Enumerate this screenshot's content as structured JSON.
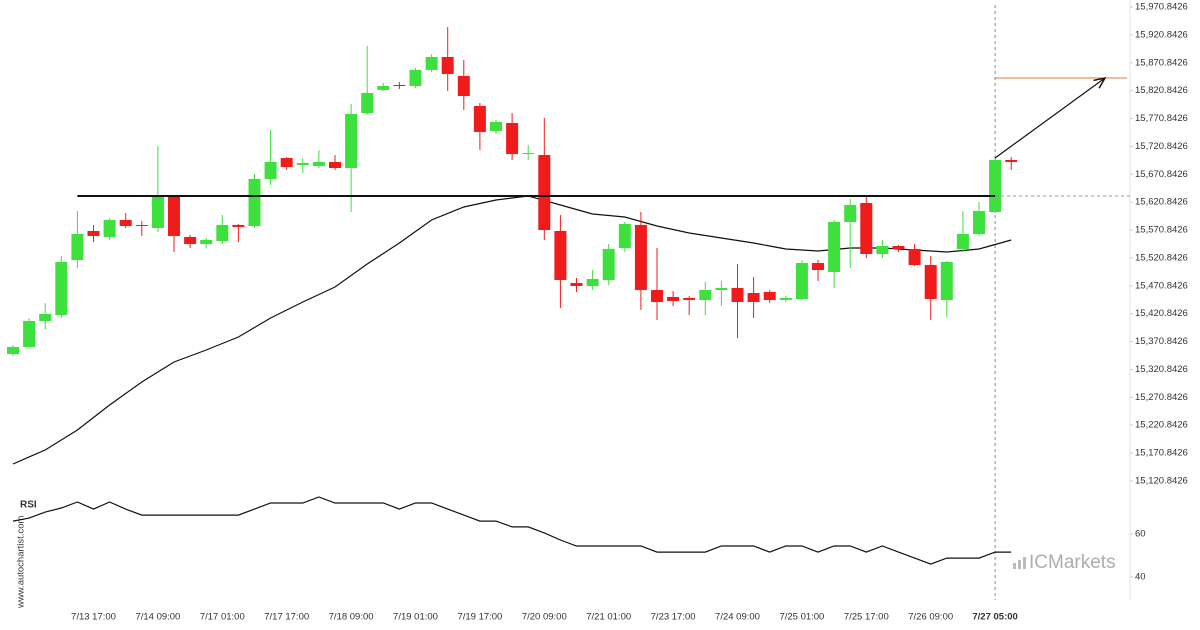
{
  "chart_data": [
    {
      "type": "candlestick",
      "categories": [
        null,
        null,
        null,
        null,
        null,
        "7/13 17:00",
        null,
        null,
        null,
        "7/14 09:00",
        null,
        null,
        null,
        "7/17 01:00",
        null,
        null,
        null,
        "7/17 17:00",
        null,
        null,
        null,
        "7/18 09:00",
        null,
        null,
        null,
        "7/19 01:00",
        null,
        null,
        null,
        "7/19 17:00",
        null,
        null,
        null,
        "7/20 09:00",
        null,
        null,
        null,
        "7/21 01:00",
        null,
        null,
        null,
        "7/23 17:00",
        null,
        null,
        null,
        "7/24 09:00",
        null,
        null,
        null,
        "7/25 01:00",
        null,
        null,
        null,
        "7/25 17:00",
        null,
        null,
        null,
        "7/26 09:00",
        null,
        null,
        null,
        "7/27 05:00",
        null
      ],
      "open": [
        15348.5,
        15361.1,
        15407.7,
        15418.5,
        15517.1,
        15569.1,
        15558.4,
        15588.9,
        15579.9,
        15574.5,
        15631.9,
        15558.4,
        15545.8,
        15551.2,
        15579.9,
        15578.1,
        15662.4,
        15700.0,
        15687.5,
        15685.7,
        15692.9,
        15682.1,
        15780.7,
        15822.0,
        15831.0,
        15829.2,
        15857.9,
        15881.2,
        15847.1,
        15793.3,
        15748.5,
        15762.8,
        15707.2,
        15705.4,
        15569.1,
        15475.9,
        15470.5,
        15481.2,
        15538.6,
        15579.9,
        15463.3,
        15450.8,
        15449.0,
        15445.4,
        15463.3,
        15466.9,
        15457.9,
        15459.7,
        15445.4,
        15447.2,
        15511.7,
        15495.6,
        15585.3,
        15619.3,
        15527.9,
        15542.2,
        15536.8,
        15508.1,
        15445.4,
        15536.8,
        15563.7,
        15603.2,
        15696.5
      ],
      "high": [
        15364.7,
        15413.1,
        15440.0,
        15524.3,
        15605.0,
        15579.9,
        15592.4,
        15601.4,
        15587.1,
        15721.6,
        15631.9,
        15562.0,
        15556.6,
        15597.8,
        15581.7,
        15671.3,
        15750.3,
        15701.8,
        15700.0,
        15714.4,
        15705.4,
        15796.9,
        15900.9,
        15834.5,
        15836.3,
        15861.4,
        15886.6,
        15935.0,
        15875.8,
        15798.7,
        15768.2,
        15780.7,
        15723.4,
        15771.8,
        15597.8,
        15484.8,
        15499.2,
        15545.8,
        15585.3,
        15603.2,
        15538.6,
        15461.5,
        15452.6,
        15477.7,
        15479.5,
        15509.9,
        15486.6,
        15463.3,
        15452.6,
        15517.1,
        15517.1,
        15588.9,
        15626.5,
        15631.9,
        15553.0,
        15544.0,
        15545.8,
        15524.3,
        15515.3,
        15605.0,
        15621.1,
        15701.8,
        15701.8
      ],
      "low": [
        15345.0,
        15357.5,
        15391.6,
        15413.1,
        15502.8,
        15549.4,
        15553.0,
        15574.5,
        15560.2,
        15567.3,
        15531.5,
        15538.6,
        15538.6,
        15545.8,
        15549.4,
        15574.5,
        15651.6,
        15678.5,
        15673.1,
        15682.1,
        15678.5,
        15603.2,
        15777.2,
        15820.2,
        15823.8,
        15825.6,
        15854.3,
        15820.2,
        15786.1,
        15714.4,
        15743.1,
        15696.5,
        15696.5,
        15553.0,
        15431.0,
        15459.7,
        15463.3,
        15472.3,
        15531.5,
        15427.4,
        15409.5,
        15434.6,
        15418.5,
        15418.5,
        15434.6,
        15377.2,
        15413.1,
        15440.0,
        15441.8,
        15445.4,
        15479.5,
        15466.9,
        15502.8,
        15520.7,
        15520.7,
        15531.5,
        15506.4,
        15409.5,
        15414.9,
        15531.5,
        15560.2,
        15601.4,
        15678.5
      ],
      "close": [
        15361.1,
        15407.7,
        15420.3,
        15513.5,
        15563.7,
        15560.2,
        15588.9,
        15578.1,
        15578.1,
        15631.9,
        15560.2,
        15545.8,
        15553.0,
        15579.9,
        15576.3,
        15662.4,
        15692.9,
        15683.9,
        15691.1,
        15692.9,
        15682.1,
        15779.0,
        15816.6,
        15829.2,
        15829.2,
        15857.9,
        15881.2,
        15850.7,
        15811.2,
        15746.7,
        15764.6,
        15707.2,
        15709.0,
        15570.9,
        15481.2,
        15470.5,
        15483.0,
        15536.8,
        15581.7,
        15463.3,
        15441.8,
        15443.6,
        15445.4,
        15463.3,
        15466.9,
        15441.8,
        15441.8,
        15445.4,
        15449.0,
        15511.7,
        15499.2,
        15585.3,
        15615.8,
        15527.9,
        15542.2,
        15536.8,
        15508.1,
        15447.2,
        15513.5,
        15563.7,
        15605.0,
        15696.5,
        15692.9
      ],
      "moving_average": [
        15151.3,
        15163.9,
        15176.4,
        15194.3,
        15212.2,
        15234.7,
        15257.1,
        15277.7,
        15298.3,
        15316.3,
        15334.2,
        15345.0,
        15355.7,
        15367.4,
        15379.0,
        15396.1,
        15413.1,
        15427.5,
        15441.8,
        15455.3,
        15468.7,
        15489.3,
        15509.9,
        15528.8,
        15547.6,
        15568.3,
        15588.9,
        15600.6,
        15612.2,
        15618.5,
        15624.7,
        15628.3,
        15631.9,
        15623.9,
        15615.8,
        15607.7,
        15599.6,
        15596.9,
        15594.2,
        15586.2,
        15578.1,
        15571.8,
        15565.5,
        15561.1,
        15556.6,
        15552.1,
        15547.6,
        15542.2,
        15536.8,
        15535.1,
        15533.3,
        15536.0,
        15538.6,
        15538.6,
        15538.6,
        15536.8,
        15535.0,
        15533.3,
        15531.5,
        15534.2,
        15536.8,
        15544.9,
        15553.0
      ],
      "support_level": 15631.9,
      "target_level": 15843.5,
      "up_color": "#3ee03e",
      "down_color": "#f01c1c",
      "line_color": "#111111",
      "target_color": "#e07a3c",
      "ylim": [
        15104.6,
        15983.4
      ],
      "yticks": [
        {
          "value": 15120.8426,
          "label": "15,120.8426"
        },
        {
          "value": 15170.8426,
          "label": "15,170.8426"
        },
        {
          "value": 15220.8426,
          "label": "15,220.8426"
        },
        {
          "value": 15270.8426,
          "label": "15,270.8426"
        },
        {
          "value": 15320.8426,
          "label": "15,320.8426"
        },
        {
          "value": 15370.8426,
          "label": "15,370.8426"
        },
        {
          "value": 15420.8426,
          "label": "15,420.8426"
        },
        {
          "value": 15470.8426,
          "label": "15,470.8426"
        },
        {
          "value": 15520.8426,
          "label": "15,520.8426"
        },
        {
          "value": 15570.8426,
          "label": "15,570.8426"
        },
        {
          "value": 15620.8426,
          "label": "15,620.8426"
        },
        {
          "value": 15670.8426,
          "label": "15,670.8426"
        },
        {
          "value": 15720.8426,
          "label": "15,720.8426"
        },
        {
          "value": 15770.8426,
          "label": "15,770.8426"
        },
        {
          "value": 15820.8426,
          "label": "15,820.8426"
        },
        {
          "value": 15870.8426,
          "label": "15,870.8426"
        },
        {
          "value": 15920.8426,
          "label": "15,920.8426"
        },
        {
          "value": 15970.8426,
          "label": "15,970.8426"
        }
      ]
    },
    {
      "type": "line",
      "title": "RSI",
      "color": "#111111",
      "values": [
        66.0,
        67.4,
        70.2,
        72.1,
        74.9,
        71.6,
        74.9,
        71.6,
        68.8,
        68.8,
        68.8,
        68.8,
        68.8,
        68.8,
        68.8,
        71.6,
        74.4,
        74.4,
        74.4,
        77.2,
        74.4,
        74.4,
        74.4,
        74.4,
        71.6,
        74.4,
        74.4,
        71.6,
        68.8,
        66.0,
        66.0,
        63.3,
        63.3,
        60.5,
        57.2,
        54.4,
        54.4,
        54.4,
        54.4,
        54.4,
        51.6,
        51.6,
        51.6,
        51.6,
        54.4,
        54.4,
        54.4,
        51.6,
        54.4,
        54.4,
        51.6,
        54.4,
        54.4,
        51.6,
        54.4,
        51.6,
        48.8,
        46.0,
        48.8,
        48.8,
        48.8,
        51.6,
        51.6
      ],
      "ylim": [
        30,
        80
      ],
      "yticks": [
        40,
        60
      ]
    }
  ],
  "watermark": "www.autochartist.com",
  "logo": "ICMarkets"
}
